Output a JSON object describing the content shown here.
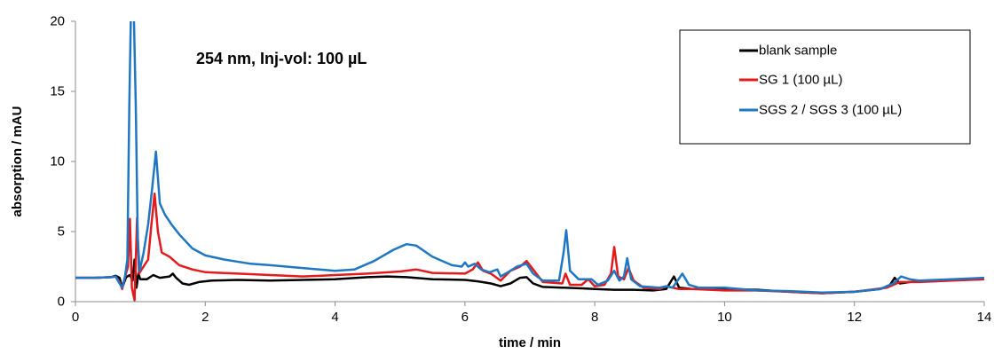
{
  "chart_data": {
    "type": "line",
    "annotation": "254 nm, Inj-vol: 100 µL",
    "xlabel": "time / min",
    "ylabel": "absorption / mAU",
    "xlim": [
      0,
      14
    ],
    "ylim": [
      0,
      20
    ],
    "x_ticks": [
      "0",
      "2",
      "4",
      "6",
      "8",
      "10",
      "12",
      "14"
    ],
    "y_ticks": [
      "0",
      "5",
      "10",
      "15",
      "20"
    ],
    "grid": false,
    "legend_position": "top-right",
    "series": [
      {
        "name": "blank sample",
        "color": "#000000",
        "points": [
          [
            0,
            1.7
          ],
          [
            0.3,
            1.7
          ],
          [
            0.55,
            1.75
          ],
          [
            0.62,
            1.85
          ],
          [
            0.68,
            1.7
          ],
          [
            0.72,
            1.0
          ],
          [
            0.78,
            1.75
          ],
          [
            0.84,
            1.9
          ],
          [
            0.88,
            1.5
          ],
          [
            0.91,
            3.0
          ],
          [
            0.94,
            1.0
          ],
          [
            0.97,
            2.0
          ],
          [
            1.0,
            1.6
          ],
          [
            1.1,
            1.6
          ],
          [
            1.2,
            1.9
          ],
          [
            1.25,
            1.8
          ],
          [
            1.3,
            1.7
          ],
          [
            1.45,
            1.8
          ],
          [
            1.5,
            2.0
          ],
          [
            1.55,
            1.7
          ],
          [
            1.65,
            1.3
          ],
          [
            1.75,
            1.2
          ],
          [
            1.9,
            1.4
          ],
          [
            2.1,
            1.5
          ],
          [
            2.5,
            1.55
          ],
          [
            3.0,
            1.5
          ],
          [
            3.5,
            1.55
          ],
          [
            4.0,
            1.6
          ],
          [
            4.5,
            1.75
          ],
          [
            4.8,
            1.8
          ],
          [
            5.1,
            1.75
          ],
          [
            5.5,
            1.6
          ],
          [
            6.0,
            1.55
          ],
          [
            6.2,
            1.45
          ],
          [
            6.4,
            1.3
          ],
          [
            6.55,
            1.1
          ],
          [
            6.7,
            1.3
          ],
          [
            6.85,
            1.7
          ],
          [
            6.95,
            1.75
          ],
          [
            7.05,
            1.3
          ],
          [
            7.2,
            1.05
          ],
          [
            7.5,
            1.0
          ],
          [
            7.8,
            0.95
          ],
          [
            8.0,
            0.9
          ],
          [
            8.3,
            0.85
          ],
          [
            8.6,
            0.85
          ],
          [
            8.9,
            0.8
          ],
          [
            9.1,
            0.9
          ],
          [
            9.22,
            1.8
          ],
          [
            9.3,
            1.0
          ],
          [
            9.5,
            0.9
          ],
          [
            10.0,
            0.9
          ],
          [
            10.5,
            0.85
          ],
          [
            11.0,
            0.7
          ],
          [
            11.5,
            0.6
          ],
          [
            12.0,
            0.7
          ],
          [
            12.4,
            0.9
          ],
          [
            12.55,
            1.2
          ],
          [
            12.62,
            1.7
          ],
          [
            12.7,
            1.3
          ],
          [
            12.85,
            1.4
          ],
          [
            13.2,
            1.5
          ],
          [
            13.6,
            1.55
          ],
          [
            14.0,
            1.6
          ]
        ]
      },
      {
        "name": "SG 1 (100 µL)",
        "color": "#e31a1c",
        "points": [
          [
            0,
            1.7
          ],
          [
            0.3,
            1.7
          ],
          [
            0.55,
            1.75
          ],
          [
            0.62,
            1.8
          ],
          [
            0.68,
            1.4
          ],
          [
            0.72,
            0.9
          ],
          [
            0.76,
            1.7
          ],
          [
            0.81,
            2.5
          ],
          [
            0.84,
            5.9
          ],
          [
            0.87,
            1.0
          ],
          [
            0.91,
            0.1
          ],
          [
            0.95,
            6.0
          ],
          [
            0.98,
            2.0
          ],
          [
            1.02,
            2.3
          ],
          [
            1.12,
            3.0
          ],
          [
            1.17,
            5.5
          ],
          [
            1.22,
            7.7
          ],
          [
            1.27,
            5.0
          ],
          [
            1.33,
            3.5
          ],
          [
            1.45,
            3.2
          ],
          [
            1.6,
            2.6
          ],
          [
            1.8,
            2.3
          ],
          [
            2.0,
            2.1
          ],
          [
            2.5,
            2.0
          ],
          [
            3.0,
            1.9
          ],
          [
            3.5,
            1.8
          ],
          [
            3.8,
            1.85
          ],
          [
            4.0,
            1.9
          ],
          [
            4.5,
            2.0
          ],
          [
            5.0,
            2.15
          ],
          [
            5.25,
            2.3
          ],
          [
            5.5,
            2.05
          ],
          [
            6.0,
            2.0
          ],
          [
            6.12,
            2.3
          ],
          [
            6.2,
            2.8
          ],
          [
            6.28,
            2.2
          ],
          [
            6.4,
            2.0
          ],
          [
            6.55,
            1.5
          ],
          [
            6.7,
            2.2
          ],
          [
            6.85,
            2.5
          ],
          [
            6.95,
            2.9
          ],
          [
            7.05,
            2.3
          ],
          [
            7.2,
            1.4
          ],
          [
            7.5,
            1.3
          ],
          [
            7.55,
            2.0
          ],
          [
            7.62,
            1.2
          ],
          [
            7.8,
            1.2
          ],
          [
            7.9,
            1.6
          ],
          [
            8.0,
            1.1
          ],
          [
            8.15,
            1.2
          ],
          [
            8.25,
            2.0
          ],
          [
            8.3,
            3.9
          ],
          [
            8.36,
            1.8
          ],
          [
            8.45,
            1.6
          ],
          [
            8.52,
            2.4
          ],
          [
            8.6,
            1.5
          ],
          [
            8.75,
            1.0
          ],
          [
            9.0,
            0.9
          ],
          [
            9.1,
            1.1
          ],
          [
            9.3,
            0.9
          ],
          [
            9.5,
            0.9
          ],
          [
            10.0,
            0.8
          ],
          [
            10.5,
            0.8
          ],
          [
            11.0,
            0.7
          ],
          [
            11.5,
            0.6
          ],
          [
            12.0,
            0.7
          ],
          [
            12.5,
            1.0
          ],
          [
            12.7,
            1.4
          ],
          [
            13.0,
            1.4
          ],
          [
            13.5,
            1.5
          ],
          [
            14.0,
            1.6
          ]
        ]
      },
      {
        "name": "SGS 2 / SGS 3 (100 µL)",
        "color": "#1f77c4",
        "points": [
          [
            0,
            1.7
          ],
          [
            0.3,
            1.7
          ],
          [
            0.55,
            1.75
          ],
          [
            0.62,
            1.8
          ],
          [
            0.68,
            1.3
          ],
          [
            0.72,
            1.0
          ],
          [
            0.76,
            1.7
          ],
          [
            0.8,
            3.0
          ],
          [
            0.83,
            14.0
          ],
          [
            0.855,
            20.5
          ],
          [
            0.9,
            20.5
          ],
          [
            0.93,
            14.0
          ],
          [
            0.96,
            4.5
          ],
          [
            0.99,
            2.2
          ],
          [
            1.05,
            3.5
          ],
          [
            1.12,
            5.5
          ],
          [
            1.18,
            8.0
          ],
          [
            1.24,
            10.7
          ],
          [
            1.3,
            7.0
          ],
          [
            1.38,
            6.2
          ],
          [
            1.48,
            5.5
          ],
          [
            1.6,
            4.8
          ],
          [
            1.8,
            3.8
          ],
          [
            2.0,
            3.3
          ],
          [
            2.3,
            3.0
          ],
          [
            2.7,
            2.7
          ],
          [
            3.0,
            2.6
          ],
          [
            3.5,
            2.4
          ],
          [
            4.0,
            2.2
          ],
          [
            4.3,
            2.3
          ],
          [
            4.6,
            2.9
          ],
          [
            4.9,
            3.7
          ],
          [
            5.1,
            4.1
          ],
          [
            5.25,
            4.0
          ],
          [
            5.5,
            3.2
          ],
          [
            5.8,
            2.6
          ],
          [
            5.95,
            2.5
          ],
          [
            6.0,
            2.8
          ],
          [
            6.05,
            2.5
          ],
          [
            6.15,
            2.7
          ],
          [
            6.25,
            2.3
          ],
          [
            6.38,
            2.1
          ],
          [
            6.5,
            2.3
          ],
          [
            6.55,
            1.8
          ],
          [
            6.7,
            2.2
          ],
          [
            6.8,
            2.5
          ],
          [
            6.95,
            2.7
          ],
          [
            7.05,
            2.0
          ],
          [
            7.2,
            1.5
          ],
          [
            7.45,
            1.5
          ],
          [
            7.52,
            3.5
          ],
          [
            7.56,
            5.1
          ],
          [
            7.62,
            2.2
          ],
          [
            7.75,
            1.6
          ],
          [
            7.95,
            1.6
          ],
          [
            8.05,
            1.2
          ],
          [
            8.2,
            1.5
          ],
          [
            8.3,
            2.2
          ],
          [
            8.38,
            1.5
          ],
          [
            8.45,
            1.8
          ],
          [
            8.5,
            3.1
          ],
          [
            8.56,
            1.6
          ],
          [
            8.7,
            1.1
          ],
          [
            9.0,
            1.0
          ],
          [
            9.1,
            1.1
          ],
          [
            9.2,
            1.0
          ],
          [
            9.35,
            2.0
          ],
          [
            9.45,
            1.2
          ],
          [
            9.6,
            1.0
          ],
          [
            10.0,
            1.0
          ],
          [
            10.5,
            0.8
          ],
          [
            11.0,
            0.75
          ],
          [
            11.5,
            0.65
          ],
          [
            12.0,
            0.7
          ],
          [
            12.4,
            0.9
          ],
          [
            12.6,
            1.3
          ],
          [
            12.72,
            1.8
          ],
          [
            12.85,
            1.6
          ],
          [
            13.0,
            1.5
          ],
          [
            13.5,
            1.6
          ],
          [
            14.0,
            1.7
          ]
        ]
      }
    ]
  }
}
